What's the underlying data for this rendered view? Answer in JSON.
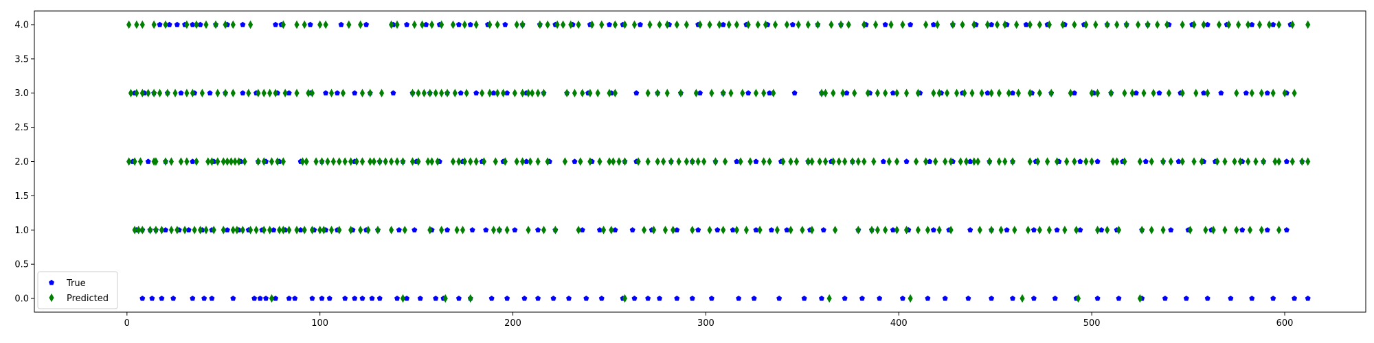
{
  "chart_data": {
    "type": "scatter",
    "title": "",
    "xlabel": "",
    "ylabel": "",
    "xlim": [
      -48,
      642
    ],
    "ylim": [
      -0.2,
      4.2
    ],
    "xticks": [
      0,
      100,
      200,
      300,
      400,
      500,
      600
    ],
    "xtick_labels": [
      "0",
      "100",
      "200",
      "300",
      "400",
      "500",
      "600"
    ],
    "yticks": [
      0.0,
      0.5,
      1.0,
      1.5,
      2.0,
      2.5,
      3.0,
      3.5,
      4.0
    ],
    "ytick_labels": [
      "0.0",
      "0.5",
      "1.0",
      "1.5",
      "2.0",
      "2.5",
      "3.0",
      "3.5",
      "4.0"
    ],
    "grid": false,
    "legend": {
      "location": "lower-left",
      "entries": [
        "True",
        "Predicted"
      ]
    },
    "series": [
      {
        "name": "True",
        "marker": "pentagon",
        "color": "#0000ff",
        "points": {
          "0": [
            8,
            13,
            18,
            24,
            34,
            40,
            44,
            55,
            66,
            69,
            72,
            77,
            84,
            87,
            96,
            101,
            105,
            113,
            118,
            122,
            127,
            131,
            140,
            145,
            152,
            160,
            164,
            172,
            178,
            189,
            197,
            206,
            213,
            221,
            229,
            238,
            246,
            257,
            263,
            270,
            276,
            285,
            293,
            303,
            317,
            325,
            338,
            351,
            360,
            372,
            381,
            390,
            402,
            415,
            424,
            436,
            448,
            459,
            470,
            481,
            492,
            503,
            514,
            526,
            538,
            549,
            560,
            572,
            583,
            594,
            605,
            612
          ],
          "1": [
            5,
            8,
            12,
            15,
            20,
            27,
            32,
            39,
            44,
            52,
            58,
            63,
            70,
            76,
            82,
            90,
            97,
            103,
            109,
            117,
            124,
            130,
            141,
            149,
            158,
            166,
            179,
            186,
            193,
            201,
            213,
            222,
            236,
            245,
            253,
            262,
            272,
            285,
            296,
            306,
            314,
            326,
            334,
            342,
            354,
            361,
            379,
            386,
            397,
            405,
            418,
            426,
            437,
            448,
            456,
            470,
            482,
            494,
            505,
            513,
            526,
            541,
            550,
            562,
            578,
            591,
            601
          ],
          "2": [
            3,
            11,
            20,
            34,
            45,
            59,
            68,
            72,
            79,
            90,
            101,
            118,
            131,
            143,
            150,
            162,
            174,
            184,
            195,
            207,
            219,
            232,
            241,
            258,
            264,
            282,
            293,
            305,
            316,
            326,
            339,
            353,
            365,
            376,
            392,
            404,
            416,
            428,
            437,
            447,
            459,
            471,
            483,
            494,
            503,
            516,
            528,
            537,
            545,
            558,
            564,
            578,
            589,
            601,
            609
          ],
          "3": [
            4,
            9,
            14,
            21,
            28,
            35,
            43,
            51,
            60,
            67,
            78,
            84,
            95,
            103,
            109,
            118,
            126,
            138,
            148,
            157,
            166,
            173,
            181,
            190,
            197,
            207,
            216,
            228,
            239,
            251,
            264,
            275,
            287,
            297,
            309,
            322,
            333,
            346,
            360,
            373,
            385,
            397,
            411,
            422,
            433,
            446,
            459,
            469,
            479,
            491,
            501,
            510,
            523,
            535,
            546,
            558,
            567,
            580,
            591,
            601
          ],
          "4": [
            17,
            22,
            26,
            30,
            34,
            38,
            46,
            52,
            60,
            77,
            80,
            95,
            111,
            124,
            138,
            145,
            155,
            162,
            172,
            178,
            187,
            196,
            205,
            214,
            222,
            231,
            240,
            250,
            257,
            266,
            281,
            296,
            309,
            321,
            332,
            345,
            358,
            370,
            383,
            393,
            406,
            418,
            428,
            440,
            448,
            456,
            466,
            477,
            486,
            496,
            508,
            518,
            529,
            540,
            552,
            560,
            570,
            583,
            594,
            603
          ]
        }
      },
      {
        "name": "Predicted",
        "marker": "thin-diamond",
        "color": "#008000",
        "points": {
          "0": [
            75,
            143,
            165,
            178,
            258,
            364,
            406,
            464,
            493,
            525
          ],
          "1": [
            4,
            6,
            8,
            12,
            15,
            18,
            23,
            26,
            30,
            35,
            38,
            41,
            45,
            50,
            55,
            57,
            60,
            64,
            67,
            71,
            74,
            79,
            81,
            84,
            88,
            92,
            96,
            100,
            102,
            106,
            110,
            116,
            121,
            125,
            130,
            137,
            144,
            157,
            163,
            171,
            174,
            190,
            193,
            197,
            208,
            216,
            222,
            234,
            247,
            251,
            268,
            273,
            279,
            283,
            293,
            302,
            309,
            316,
            321,
            328,
            337,
            344,
            350,
            355,
            367,
            379,
            386,
            389,
            393,
            399,
            404,
            410,
            415,
            421,
            427,
            442,
            448,
            453,
            460,
            467,
            473,
            478,
            486,
            492,
            503,
            508,
            514,
            526,
            531,
            537,
            551,
            559,
            563,
            569,
            575,
            582,
            588,
            597
          ],
          "2": [
            1,
            4,
            7,
            14,
            15,
            20,
            23,
            28,
            31,
            36,
            42,
            44,
            47,
            50,
            52,
            54,
            56,
            58,
            61,
            68,
            71,
            75,
            78,
            81,
            91,
            93,
            98,
            101,
            104,
            107,
            110,
            113,
            116,
            119,
            122,
            126,
            128,
            131,
            134,
            137,
            140,
            143,
            148,
            151,
            156,
            158,
            161,
            169,
            172,
            175,
            178,
            181,
            185,
            191,
            196,
            202,
            205,
            209,
            213,
            218,
            227,
            235,
            240,
            245,
            250,
            252,
            255,
            258,
            265,
            270,
            275,
            278,
            282,
            286,
            290,
            293,
            296,
            299,
            305,
            310,
            318,
            323,
            330,
            333,
            340,
            344,
            347,
            353,
            355,
            359,
            362,
            366,
            369,
            372,
            376,
            379,
            382,
            387,
            395,
            399,
            409,
            414,
            419,
            424,
            427,
            432,
            435,
            439,
            441,
            447,
            452,
            455,
            459,
            468,
            472,
            477,
            482,
            487,
            491,
            497,
            500,
            511,
            513,
            517,
            525,
            531,
            537,
            541,
            547,
            553,
            557,
            565,
            569,
            574,
            577,
            581,
            585,
            589,
            595,
            597,
            604,
            609,
            612
          ],
          "3": [
            2,
            5,
            8,
            11,
            14,
            17,
            21,
            25,
            31,
            34,
            39,
            47,
            51,
            55,
            63,
            68,
            71,
            74,
            77,
            82,
            88,
            94,
            96,
            106,
            112,
            122,
            126,
            132,
            148,
            151,
            154,
            157,
            160,
            163,
            166,
            170,
            176,
            184,
            188,
            192,
            195,
            201,
            205,
            208,
            210,
            213,
            216,
            228,
            232,
            236,
            240,
            244,
            250,
            253,
            270,
            275,
            280,
            287,
            295,
            303,
            309,
            313,
            319,
            326,
            330,
            335,
            360,
            362,
            366,
            371,
            377,
            384,
            389,
            393,
            399,
            404,
            410,
            418,
            421,
            425,
            430,
            434,
            438,
            443,
            448,
            452,
            457,
            462,
            468,
            473,
            479,
            489,
            500,
            503,
            510,
            517,
            521,
            527,
            532,
            540,
            547,
            554,
            560,
            575,
            583,
            588,
            594,
            600,
            605
          ],
          "4": [
            1,
            5,
            8,
            14,
            20,
            31,
            36,
            41,
            46,
            51,
            55,
            64,
            81,
            88,
            92,
            100,
            103,
            115,
            121,
            137,
            140,
            149,
            153,
            158,
            163,
            169,
            175,
            181,
            188,
            192,
            202,
            205,
            214,
            218,
            223,
            226,
            230,
            234,
            241,
            246,
            253,
            258,
            263,
            271,
            276,
            280,
            285,
            290,
            297,
            302,
            307,
            312,
            316,
            322,
            327,
            331,
            336,
            342,
            348,
            353,
            358,
            365,
            370,
            374,
            382,
            388,
            396,
            402,
            414,
            420,
            428,
            433,
            439,
            446,
            451,
            455,
            461,
            468,
            473,
            478,
            485,
            491,
            497,
            502,
            508,
            513,
            518,
            524,
            529,
            534,
            539,
            547,
            553,
            558,
            566,
            571,
            576,
            581,
            587,
            592,
            597,
            604,
            612
          ]
        }
      }
    ]
  }
}
